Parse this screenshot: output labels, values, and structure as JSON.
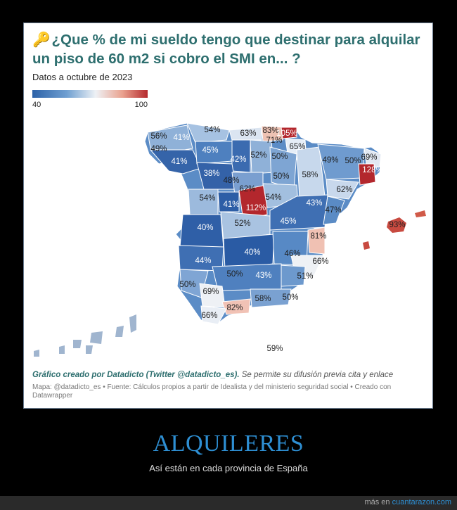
{
  "title": "¿Que % de mi sueldo tengo que destinar para alquilar un piso de 60 m2 si cobro el SMI en... ?",
  "icons": {
    "key": "key-icon"
  },
  "subtitle": "Datos a octubre de 2023",
  "legend": {
    "min": "40",
    "max": "100"
  },
  "labels": [
    {
      "name": "a-coruna",
      "text": "56%",
      "v": 56
    },
    {
      "name": "lugo",
      "text": "41%",
      "v": 41
    },
    {
      "name": "pontevedra",
      "text": "49%",
      "v": 49
    },
    {
      "name": "ourense",
      "text": "41%",
      "v": 41
    },
    {
      "name": "asturias",
      "text": "54%",
      "v": 54
    },
    {
      "name": "cantabria",
      "text": "63%",
      "v": 63
    },
    {
      "name": "bizkaia",
      "text": "83%",
      "v": 83
    },
    {
      "name": "gipuzkoa",
      "text": "105%",
      "v": 105
    },
    {
      "name": "alava",
      "text": "71%",
      "v": 71
    },
    {
      "name": "navarra",
      "text": "65%",
      "v": 65
    },
    {
      "name": "leon",
      "text": "45%",
      "v": 45
    },
    {
      "name": "palencia",
      "text": "42%",
      "v": 42
    },
    {
      "name": "burgos",
      "text": "52%",
      "v": 52
    },
    {
      "name": "la-rioja",
      "text": "50%",
      "v": 50
    },
    {
      "name": "huesca",
      "text": "49%",
      "v": 49
    },
    {
      "name": "lleida",
      "text": "50%",
      "v": 50
    },
    {
      "name": "girona",
      "text": "69%",
      "v": 69
    },
    {
      "name": "barcelona",
      "text": "128%",
      "v": 128
    },
    {
      "name": "zamora",
      "text": "38%",
      "v": 38
    },
    {
      "name": "valladolid",
      "text": "48%",
      "v": 48
    },
    {
      "name": "soria",
      "text": "50%",
      "v": 50
    },
    {
      "name": "zaragoza",
      "text": "58%",
      "v": 58
    },
    {
      "name": "tarragona",
      "text": "62%",
      "v": 62
    },
    {
      "name": "segovia",
      "text": "62%",
      "v": 62
    },
    {
      "name": "salamanca",
      "text": "54%",
      "v": 54
    },
    {
      "name": "avila",
      "text": "41%",
      "v": 41
    },
    {
      "name": "madrid",
      "text": "112%",
      "v": 112
    },
    {
      "name": "guadalajara",
      "text": "54%",
      "v": 54
    },
    {
      "name": "teruel",
      "text": "43%",
      "v": 43
    },
    {
      "name": "castellon",
      "text": "47%",
      "v": 47
    },
    {
      "name": "caceres",
      "text": "40%",
      "v": 40
    },
    {
      "name": "toledo",
      "text": "52%",
      "v": 52
    },
    {
      "name": "cuenca",
      "text": "45%",
      "v": 45
    },
    {
      "name": "valencia",
      "text": "81%",
      "v": 81
    },
    {
      "name": "islas-baleares",
      "text": "93%",
      "v": 93
    },
    {
      "name": "badajoz",
      "text": "44%",
      "v": 44
    },
    {
      "name": "ciudad-real",
      "text": "40%",
      "v": 40
    },
    {
      "name": "albacete",
      "text": "46%",
      "v": 46
    },
    {
      "name": "alicante",
      "text": "66%",
      "v": 66
    },
    {
      "name": "cordoba",
      "text": "50%",
      "v": 50
    },
    {
      "name": "jaen",
      "text": "43%",
      "v": 43
    },
    {
      "name": "murcia",
      "text": "51%",
      "v": 51
    },
    {
      "name": "huelva",
      "text": "50%",
      "v": 50
    },
    {
      "name": "sevilla",
      "text": "69%",
      "v": 69
    },
    {
      "name": "granada",
      "text": "58%",
      "v": 58
    },
    {
      "name": "almeria",
      "text": "50%",
      "v": 50
    },
    {
      "name": "malaga",
      "text": "82%",
      "v": 82
    },
    {
      "name": "cadiz",
      "text": "66%",
      "v": 66
    },
    {
      "name": "canarias",
      "text": "59%",
      "v": 59
    }
  ],
  "credit": {
    "bold": "Gráfico creado por Datadicto (Twitter @datadicto_es).",
    "rest": " Se permite su difusión previa cita y enlace"
  },
  "source": "Mapa: @datadicto_es • Fuente: Cálculos propios a partir de Idealista y del ministerio seguridad social • Creado con Datawrapper",
  "headline": "ALQUILERES",
  "tagline": "Así están en cada provincia de España",
  "footer": {
    "prefix": "más en ",
    "link": "cuantarazon.com"
  }
}
